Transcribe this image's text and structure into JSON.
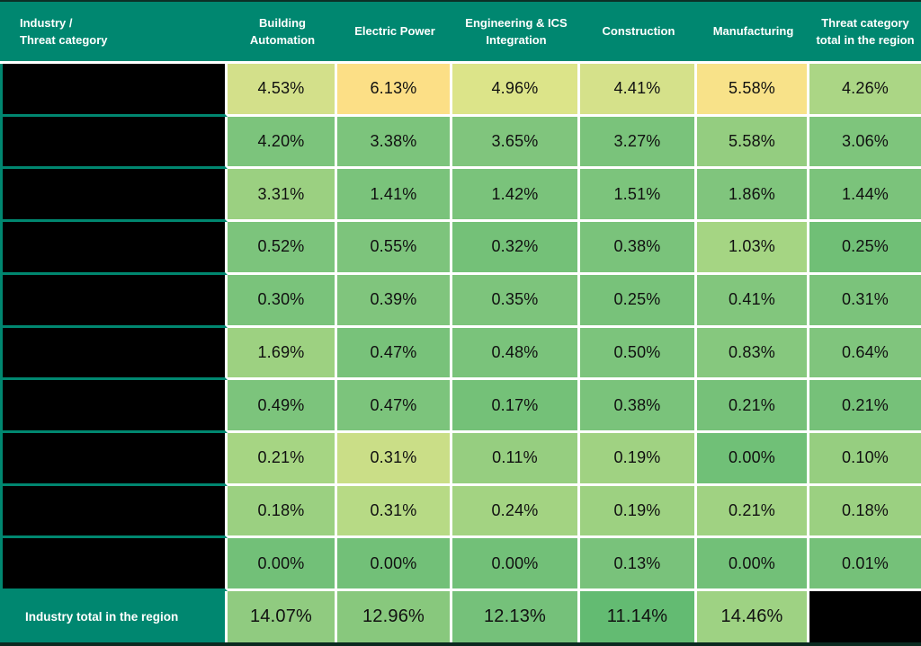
{
  "table": {
    "header": {
      "row_header_line1": "Industry /",
      "row_header_line2": "Threat category",
      "columns": [
        "Building Automation",
        "Electric Power",
        "Engineering & ICS Integration",
        "Construction",
        "Manufacturing",
        "Threat category total in the region"
      ]
    },
    "rows": [
      {
        "label_redacted": true,
        "values": [
          "4.53%",
          "6.13%",
          "4.96%",
          "4.41%",
          "5.58%",
          "4.26%"
        ],
        "colors": [
          "#d3e08a",
          "#fcdf86",
          "#dce489",
          "#d5e18a",
          "#f8e289",
          "#abd685"
        ]
      },
      {
        "label_redacted": true,
        "values": [
          "4.20%",
          "3.38%",
          "3.65%",
          "3.27%",
          "5.58%",
          "3.06%"
        ],
        "colors": [
          "#7cc47c",
          "#7cc47c",
          "#80c57d",
          "#7ac37b",
          "#94cd80",
          "#7ec57c"
        ]
      },
      {
        "label_redacted": true,
        "values": [
          "3.31%",
          "1.41%",
          "1.42%",
          "1.51%",
          "1.86%",
          "1.44%"
        ],
        "colors": [
          "#9bd081",
          "#7ac37b",
          "#7ac37b",
          "#7cc47c",
          "#80c57d",
          "#7bc37b"
        ]
      },
      {
        "label_redacted": true,
        "values": [
          "0.52%",
          "0.55%",
          "0.32%",
          "0.38%",
          "1.03%",
          "0.25%"
        ],
        "colors": [
          "#7cc47c",
          "#7dc47c",
          "#74c178",
          "#7ac37b",
          "#a5d583",
          "#70bf76"
        ]
      },
      {
        "label_redacted": true,
        "values": [
          "0.30%",
          "0.39%",
          "0.35%",
          "0.25%",
          "0.41%",
          "0.31%"
        ],
        "colors": [
          "#7ac37b",
          "#80c57d",
          "#7dc47c",
          "#78c27a",
          "#82c67d",
          "#7bc37b"
        ]
      },
      {
        "label_redacted": true,
        "values": [
          "1.69%",
          "0.47%",
          "0.48%",
          "0.50%",
          "0.83%",
          "0.64%"
        ],
        "colors": [
          "#9dd181",
          "#78c27a",
          "#7ac37b",
          "#7cc47c",
          "#86c87e",
          "#80c57d"
        ]
      },
      {
        "label_redacted": true,
        "values": [
          "0.49%",
          "0.47%",
          "0.17%",
          "0.38%",
          "0.21%",
          "0.21%"
        ],
        "colors": [
          "#7cc47c",
          "#7cc47c",
          "#74c178",
          "#7ac37b",
          "#76c179",
          "#76c179"
        ]
      },
      {
        "label_redacted": true,
        "values": [
          "0.21%",
          "0.31%",
          "0.11%",
          "0.19%",
          "0.00%",
          "0.10%"
        ],
        "colors": [
          "#a6d583",
          "#cade87",
          "#96ce80",
          "#a0d282",
          "#70c077",
          "#96ce80"
        ]
      },
      {
        "label_redacted": true,
        "values": [
          "0.18%",
          "0.31%",
          "0.24%",
          "0.19%",
          "0.21%",
          "0.18%"
        ],
        "colors": [
          "#9bd081",
          "#b7da85",
          "#a3d382",
          "#9dd181",
          "#a0d282",
          "#9bd081"
        ]
      },
      {
        "label_redacted": true,
        "values": [
          "0.00%",
          "0.00%",
          "0.00%",
          "0.13%",
          "0.00%",
          "0.01%"
        ],
        "colors": [
          "#72c078",
          "#72c078",
          "#72c078",
          "#79c27b",
          "#72c078",
          "#75c179"
        ]
      }
    ],
    "footer": {
      "label": "Industry total in the region",
      "values": [
        "14.07%",
        "12.96%",
        "12.13%",
        "11.14%",
        "14.46%"
      ],
      "colors": [
        "#90cb80",
        "#88c87d",
        "#75c17a",
        "#63bb72",
        "#9ed283"
      ],
      "last_cell_redacted": true
    },
    "palette": {
      "header_bg": "#008770",
      "redacted_black": "#000000",
      "separator_white": "#ffffff",
      "label_separator_teal": "#008770",
      "table_edge_dark": "#0b2a20",
      "header_text": "#ffffff",
      "value_text": "#101010"
    }
  },
  "chart_data": {
    "type": "heatmap",
    "title": "Industry / Threat category",
    "columns": [
      "Building Automation",
      "Electric Power",
      "Engineering & ICS Integration",
      "Construction",
      "Manufacturing",
      "Threat category total in the region"
    ],
    "row_labels_redacted": true,
    "matrix_pct": [
      [
        4.53,
        6.13,
        4.96,
        4.41,
        5.58,
        4.26
      ],
      [
        4.2,
        3.38,
        3.65,
        3.27,
        5.58,
        3.06
      ],
      [
        3.31,
        1.41,
        1.42,
        1.51,
        1.86,
        1.44
      ],
      [
        0.52,
        0.55,
        0.32,
        0.38,
        1.03,
        0.25
      ],
      [
        0.3,
        0.39,
        0.35,
        0.25,
        0.41,
        0.31
      ],
      [
        1.69,
        0.47,
        0.48,
        0.5,
        0.83,
        0.64
      ],
      [
        0.49,
        0.47,
        0.17,
        0.38,
        0.21,
        0.21
      ],
      [
        0.21,
        0.31,
        0.11,
        0.19,
        0.0,
        0.1
      ],
      [
        0.18,
        0.31,
        0.24,
        0.19,
        0.21,
        0.18
      ],
      [
        0.0,
        0.0,
        0.0,
        0.13,
        0.0,
        0.01
      ]
    ],
    "footer_label": "Industry total in the region",
    "footer_values_pct": [
      14.07,
      12.96,
      12.13,
      11.14,
      14.46,
      null
    ],
    "notes": "Row label column and the bottom-right footer total cell are blacked out (redacted) in the image; cells use a green-to-yellow heat scale."
  }
}
